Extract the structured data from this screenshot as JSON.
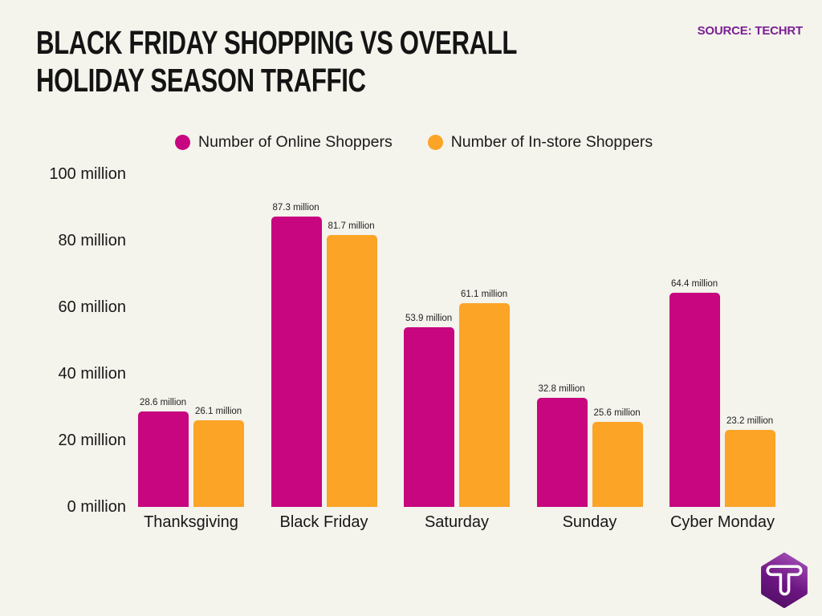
{
  "title": {
    "lines": [
      "BLACK FRIDAY SHOPPING VS OVERALL",
      "HOLIDAY SEASON TRAFFIC"
    ]
  },
  "source": "SOURCE: TECHRT",
  "legend": [
    {
      "label": "Number of Online Shoppers",
      "color": "#c7067f"
    },
    {
      "label": "Number of In-store Shoppers",
      "color": "#fba426"
    }
  ],
  "chart_data": {
    "type": "bar",
    "title": "Black Friday Shopping vs Overall Holiday Season Traffic",
    "categories": [
      "Thanksgiving",
      "Black Friday",
      "Saturday",
      "Sunday",
      "Cyber Monday"
    ],
    "series": [
      {
        "name": "Number of Online Shoppers",
        "color": "#c7067f",
        "values": [
          28.6,
          87.3,
          53.9,
          32.8,
          64.4
        ]
      },
      {
        "name": "Number of In-store Shoppers",
        "color": "#fba426",
        "values": [
          26.1,
          81.7,
          61.1,
          25.6,
          23.2
        ]
      }
    ],
    "value_label_suffix": " million",
    "yticks": [
      0,
      20,
      40,
      60,
      80,
      100
    ],
    "ytick_suffix": " million",
    "ylim": [
      0,
      100
    ],
    "grid": false,
    "legend_position": "top",
    "background_color": "#f4f3ec"
  },
  "logo": {
    "letter": "T",
    "hex_gradient_top": "#a04ab3",
    "hex_gradient_mid": "#6d1682",
    "hex_gradient_bottom": "#530f68",
    "glyph_color": "#ffffff"
  }
}
